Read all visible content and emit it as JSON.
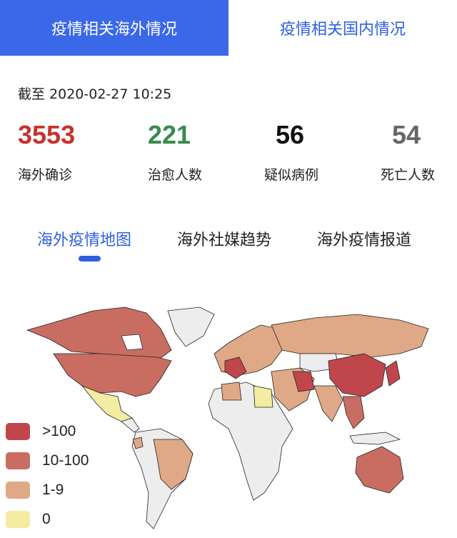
{
  "top_tabs": [
    {
      "label": "疫情相关海外情况",
      "active": true
    },
    {
      "label": "疫情相关国内情况",
      "active": false
    }
  ],
  "as_of": "截至 2020-02-27 10:25",
  "stats": [
    {
      "value": "3553",
      "label": "海外确诊",
      "color": "#c8312c"
    },
    {
      "value": "221",
      "label": "治愈人数",
      "color": "#3a8a4f"
    },
    {
      "value": "56",
      "label": "疑似病例",
      "color": "#111111"
    },
    {
      "value": "54",
      "label": "死亡人数",
      "color": "#666666"
    }
  ],
  "sub_tabs": [
    {
      "label": "海外疫情地图",
      "active": true
    },
    {
      "label": "海外社媒趋势",
      "active": false
    },
    {
      "label": "海外疫情报道",
      "active": false
    }
  ],
  "legend": [
    {
      "label": ">100",
      "color": "#bf474c"
    },
    {
      "label": "10-100",
      "color": "#c96d63"
    },
    {
      "label": "1-9",
      "color": "#dfa886"
    },
    {
      "label": "0",
      "color": "#f3eca2"
    }
  ],
  "no_data_color": "#ededed"
}
